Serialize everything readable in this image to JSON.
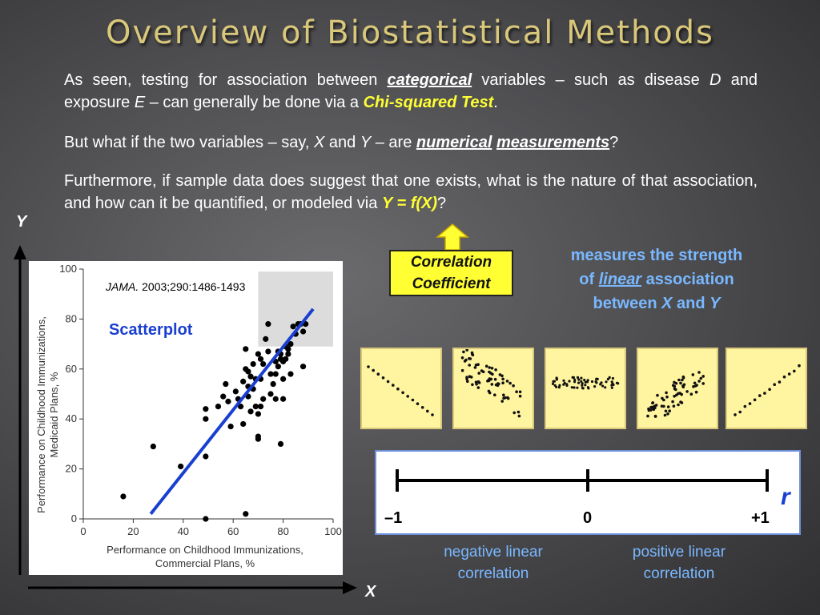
{
  "title": "Overview of Biostatistical Methods",
  "para1": {
    "t1": "As seen, testing for association between ",
    "categorical": "categorical",
    "t2": " variables – such as disease ",
    "D": "D",
    "t3": " and exposure ",
    "E": "E",
    "t4": " – can generally be done via a ",
    "chi": "Chi-squared Test",
    "t5": "."
  },
  "para2": {
    "t1": "But what if the two variables – say, ",
    "X": "X",
    "t2": " and ",
    "Y": "Y",
    "t3": " – are ",
    "numerical": "numerical",
    "measurements": "measurements",
    "t4": "?"
  },
  "para3": {
    "t1": "Furthermore, if sample data does suggest that one exists, what is the nature of that association, and how can it be quantified, or modeled via ",
    "formula": "Y = f(X)",
    "t2": "?"
  },
  "axes": {
    "y": "Y",
    "x": "X"
  },
  "scatter_panel": {
    "citation_journal": "JAMA.",
    "citation_rest": " 2003;290:1486-1493",
    "label": "Scatterplot",
    "ylabel_line1": "Performance on Childhood Immunizations,",
    "ylabel_line2": "Medicaid Plans, %",
    "xlabel_line1": "Performance on Childhood Immunizations,",
    "xlabel_line2": "Commercial Plans, %"
  },
  "chart_data": {
    "type": "scatter",
    "xlabel": "Performance on Childhood Immunizations, Commercial Plans, %",
    "ylabel": "Performance on Childhood Immunizations, Medicaid Plans, %",
    "xlim": [
      0,
      100
    ],
    "ylim": [
      0,
      100
    ],
    "x_ticks": [
      "0",
      "20",
      "40",
      "60",
      "80",
      "100"
    ],
    "y_ticks": [
      "0",
      "20",
      "40",
      "60",
      "80",
      "100"
    ],
    "points": [
      [
        16,
        9
      ],
      [
        28,
        29
      ],
      [
        39,
        21
      ],
      [
        49,
        44
      ],
      [
        49,
        40
      ],
      [
        49,
        25
      ],
      [
        49,
        0
      ],
      [
        54,
        45
      ],
      [
        56,
        49
      ],
      [
        57,
        54
      ],
      [
        58,
        47
      ],
      [
        59,
        37
      ],
      [
        61,
        51
      ],
      [
        62,
        48
      ],
      [
        63,
        45
      ],
      [
        64,
        55
      ],
      [
        64,
        38
      ],
      [
        65,
        60
      ],
      [
        65,
        68
      ],
      [
        65,
        2
      ],
      [
        66,
        53
      ],
      [
        66,
        49
      ],
      [
        66,
        59
      ],
      [
        67,
        57
      ],
      [
        67,
        43
      ],
      [
        68,
        52
      ],
      [
        68,
        62
      ],
      [
        69,
        56
      ],
      [
        69,
        45
      ],
      [
        70,
        42
      ],
      [
        70,
        33
      ],
      [
        70,
        32
      ],
      [
        70,
        66
      ],
      [
        71,
        45
      ],
      [
        71,
        64
      ],
      [
        71,
        56
      ],
      [
        72,
        48
      ],
      [
        72,
        62
      ],
      [
        73,
        72
      ],
      [
        74,
        67
      ],
      [
        74,
        78
      ],
      [
        75,
        50
      ],
      [
        75,
        58
      ],
      [
        76,
        54
      ],
      [
        77,
        63
      ],
      [
        77,
        58
      ],
      [
        77,
        48
      ],
      [
        78,
        67
      ],
      [
        78,
        61
      ],
      [
        79,
        66
      ],
      [
        79,
        64
      ],
      [
        79,
        30
      ],
      [
        80,
        63
      ],
      [
        80,
        56
      ],
      [
        80,
        48
      ],
      [
        81,
        69
      ],
      [
        81,
        64
      ],
      [
        82,
        68
      ],
      [
        82,
        66
      ],
      [
        83,
        70
      ],
      [
        83,
        58
      ],
      [
        84,
        77
      ],
      [
        85,
        74
      ],
      [
        86,
        78
      ],
      [
        87,
        78
      ],
      [
        88,
        75
      ],
      [
        88,
        61
      ],
      [
        89,
        78
      ]
    ],
    "fit_line": [
      [
        27,
        2
      ],
      [
        92,
        84
      ]
    ],
    "highlight_box": {
      "x": [
        70,
        100
      ],
      "y": [
        69,
        99
      ]
    }
  },
  "correlation": {
    "box_line1": "Correlation",
    "box_line2": "Coefficient",
    "desc_line1": "measures the strength",
    "desc_of": "of ",
    "desc_linear": "linear",
    "desc_assoc": " association",
    "desc_between": "between ",
    "desc_X": "X",
    "desc_and": " and ",
    "desc_Y": "Y"
  },
  "scale": {
    "minus_one": "–1",
    "zero": "0",
    "plus_one": "+1",
    "r_symbol": "r",
    "neg_line1": "negative linear",
    "neg_line2": "correlation",
    "pos_line1": "positive linear",
    "pos_line2": "correlation"
  },
  "colors": {
    "title": "#d9c77a",
    "highlight": "#ffff33",
    "accent_blue": "#79b8ff",
    "fit_line": "#1a3fd0"
  }
}
